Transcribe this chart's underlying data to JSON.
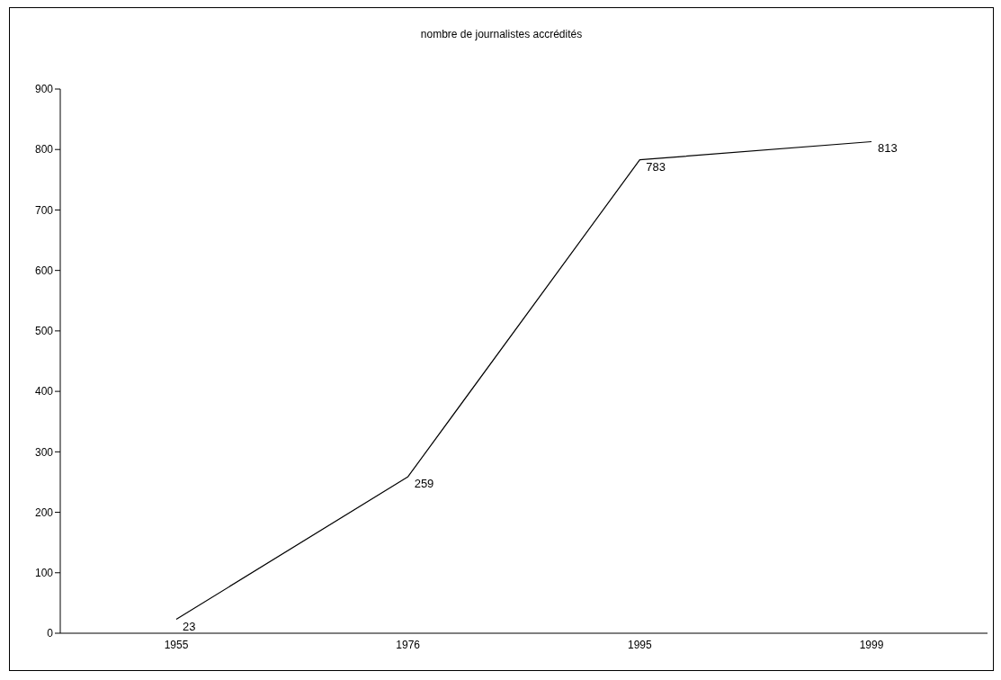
{
  "chart_data": {
    "type": "line",
    "title": "nombre de journalistes accrédités",
    "categories": [
      "1955",
      "1976",
      "1995",
      "1999"
    ],
    "values": [
      23,
      259,
      783,
      813
    ],
    "color": "#000000",
    "ylim": [
      0,
      900
    ],
    "yticks": [
      0,
      100,
      200,
      300,
      400,
      500,
      600,
      700,
      800,
      900
    ],
    "data_labels": true
  }
}
